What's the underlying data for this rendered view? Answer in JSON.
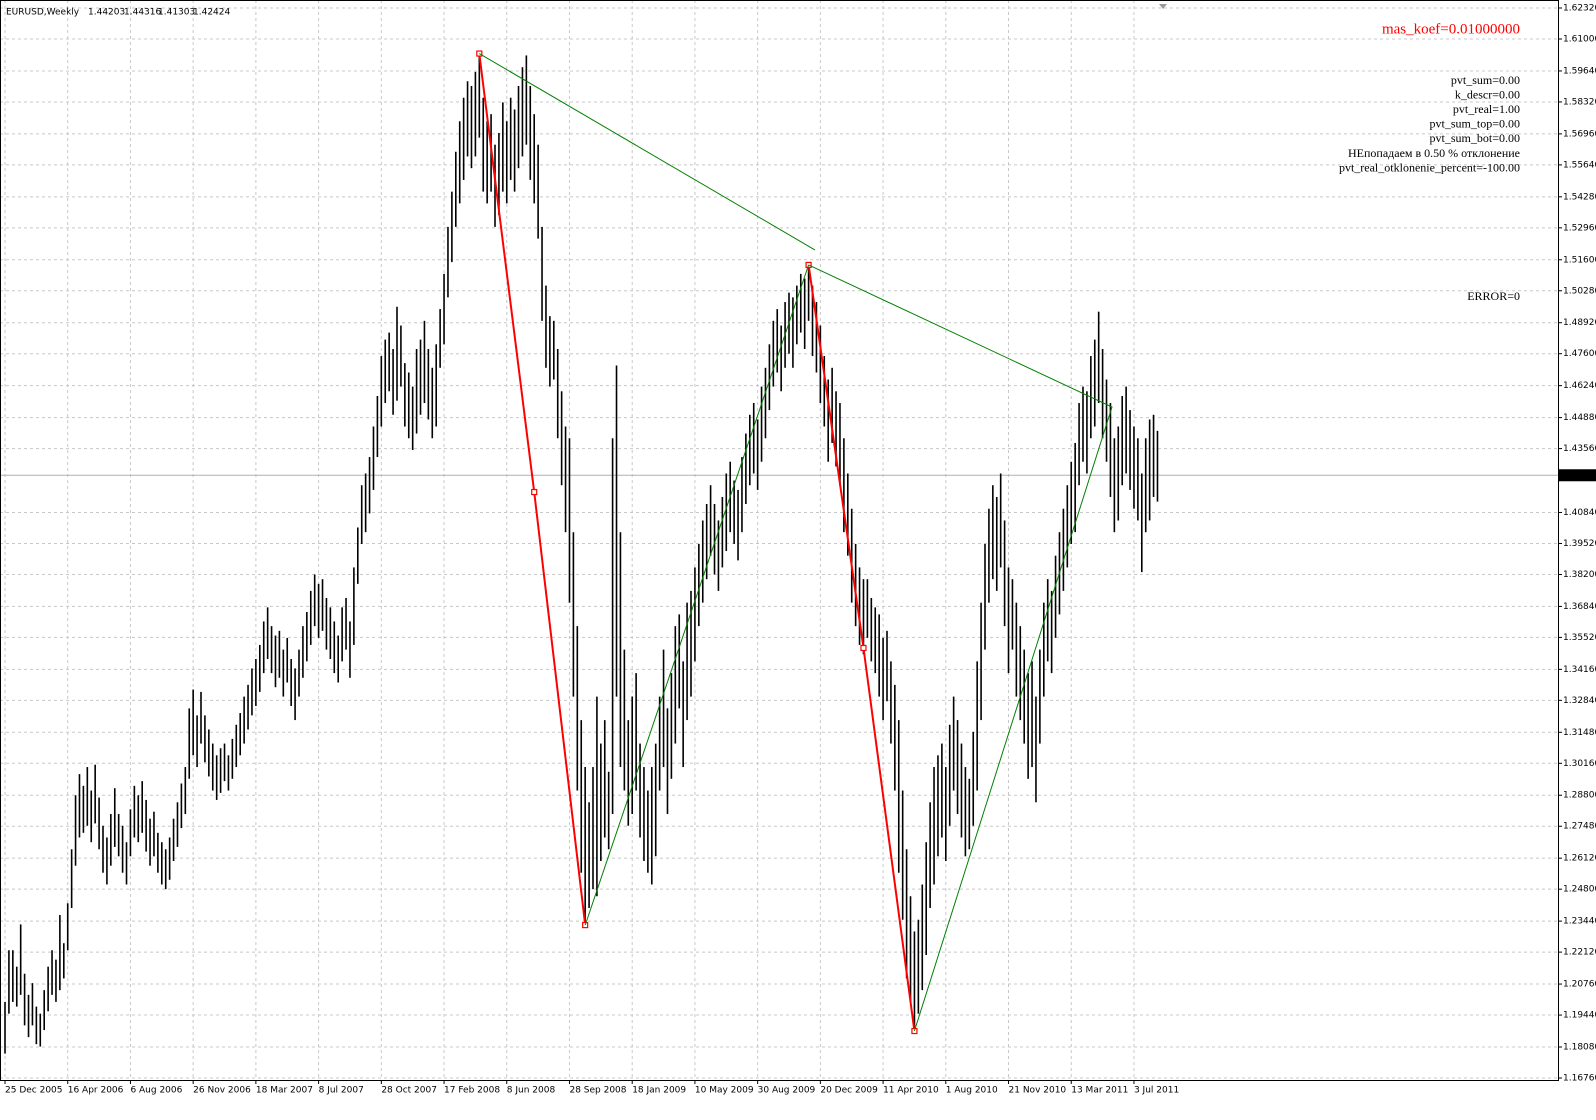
{
  "chart_data": {
    "type": "ohlc",
    "title": "EURUSD,Weekly",
    "last_bar": {
      "open": 1.44203,
      "high": 1.44316,
      "low": 1.41303,
      "close": 1.42424
    },
    "bar_color": "#000000",
    "grid": true,
    "ylim": [
      1.1676,
      1.6232
    ],
    "yticks": [
      {
        "value": 1.6232,
        "label": "1.62320"
      },
      {
        "value": 1.61,
        "label": "1.61000"
      },
      {
        "value": 1.5964,
        "label": "1.59640"
      },
      {
        "value": 1.5832,
        "label": "1.58320"
      },
      {
        "value": 1.5696,
        "label": "1.56960"
      },
      {
        "value": 1.5564,
        "label": "1.55640"
      },
      {
        "value": 1.5428,
        "label": "1.54280"
      },
      {
        "value": 1.5296,
        "label": "1.52960"
      },
      {
        "value": 1.516,
        "label": "1.51600"
      },
      {
        "value": 1.5028,
        "label": "1.50280"
      },
      {
        "value": 1.4892,
        "label": "1.48920"
      },
      {
        "value": 1.476,
        "label": "1.47600"
      },
      {
        "value": 1.4624,
        "label": "1.46240"
      },
      {
        "value": 1.4488,
        "label": "1.44880"
      },
      {
        "value": 1.4356,
        "label": "1.43560"
      },
      {
        "value": 1.4084,
        "label": "1.40840"
      },
      {
        "value": 1.3952,
        "label": "1.39520"
      },
      {
        "value": 1.382,
        "label": "1.38200"
      },
      {
        "value": 1.3684,
        "label": "1.36840"
      },
      {
        "value": 1.3552,
        "label": "1.35520"
      },
      {
        "value": 1.3416,
        "label": "1.34160"
      },
      {
        "value": 1.3284,
        "label": "1.32840"
      },
      {
        "value": 1.3148,
        "label": "1.31480"
      },
      {
        "value": 1.3016,
        "label": "1.30160"
      },
      {
        "value": 1.288,
        "label": "1.28800"
      },
      {
        "value": 1.2748,
        "label": "1.27480"
      },
      {
        "value": 1.2612,
        "label": "1.26120"
      },
      {
        "value": 1.248,
        "label": "1.24800"
      },
      {
        "value": 1.2344,
        "label": "1.23440"
      },
      {
        "value": 1.2212,
        "label": "1.22120"
      },
      {
        "value": 1.2076,
        "label": "1.20760"
      },
      {
        "value": 1.1944,
        "label": "1.19440"
      },
      {
        "value": 1.1808,
        "label": "1.18080"
      },
      {
        "value": 1.1676,
        "label": "1.16760"
      }
    ],
    "xlim": [
      -1,
      397
    ],
    "xticks": [
      {
        "value": 0,
        "label": "25 Dec 2005"
      },
      {
        "value": 16,
        "label": "16 Apr 2006"
      },
      {
        "value": 32,
        "label": "6 Aug 2006"
      },
      {
        "value": 48,
        "label": "26 Nov 2006"
      },
      {
        "value": 64,
        "label": "18 Mar 2007"
      },
      {
        "value": 80,
        "label": "8 Jul 2007"
      },
      {
        "value": 96,
        "label": "28 Oct 2007"
      },
      {
        "value": 112,
        "label": "17 Feb 2008"
      },
      {
        "value": 128,
        "label": "8 Jun 2008"
      },
      {
        "value": 144,
        "label": "28 Sep 2008"
      },
      {
        "value": 160,
        "label": "18 Jan 2009"
      },
      {
        "value": 176,
        "label": "10 May 2009"
      },
      {
        "value": 192,
        "label": "30 Aug 2009"
      },
      {
        "value": 208,
        "label": "20 Dec 2009"
      },
      {
        "value": 224,
        "label": "11 Apr 2010"
      },
      {
        "value": 240,
        "label": "1 Aug 2010"
      },
      {
        "value": 256,
        "label": "21 Nov 2010"
      },
      {
        "value": 272,
        "label": "13 Mar 2011"
      },
      {
        "value": 288,
        "label": "3 Jul 2011"
      }
    ],
    "high": [
      1.2,
      1.222,
      1.222,
      1.215,
      1.233,
      1.212,
      1.203,
      1.208,
      1.198,
      1.195,
      1.205,
      1.215,
      1.222,
      1.218,
      1.237,
      1.225,
      1.242,
      1.265,
      1.288,
      1.297,
      1.292,
      1.3,
      1.29,
      1.301,
      1.287,
      1.275,
      1.27,
      1.28,
      1.291,
      1.28,
      1.275,
      1.268,
      1.282,
      1.292,
      1.288,
      1.294,
      1.286,
      1.278,
      1.281,
      1.272,
      1.268,
      1.265,
      1.27,
      1.278,
      1.285,
      1.293,
      1.3,
      1.325,
      1.333,
      1.322,
      1.332,
      1.322,
      1.316,
      1.31,
      1.305,
      1.308,
      1.31,
      1.305,
      1.312,
      1.318,
      1.323,
      1.33,
      1.335,
      1.342,
      1.346,
      1.352,
      1.362,
      1.368,
      1.36,
      1.356,
      1.358,
      1.35,
      1.355,
      1.346,
      1.342,
      1.35,
      1.36,
      1.366,
      1.375,
      1.382,
      1.378,
      1.38,
      1.372,
      1.368,
      1.362,
      1.356,
      1.368,
      1.372,
      1.362,
      1.385,
      1.402,
      1.42,
      1.425,
      1.432,
      1.445,
      1.458,
      1.475,
      1.482,
      1.485,
      1.478,
      1.496,
      1.488,
      1.472,
      1.468,
      1.462,
      1.478,
      1.482,
      1.49,
      1.478,
      1.47,
      1.48,
      1.495,
      1.51,
      1.53,
      1.545,
      1.562,
      1.575,
      1.585,
      1.592,
      1.59,
      1.596,
      1.6038,
      1.585,
      1.575,
      1.578,
      1.565,
      1.57,
      1.583,
      1.575,
      1.585,
      1.58,
      1.59,
      1.598,
      1.603,
      1.59,
      1.578,
      1.565,
      1.53,
      1.505,
      1.492,
      1.49,
      1.478,
      1.46,
      1.445,
      1.44,
      1.4,
      1.36,
      1.32,
      1.3,
      1.285,
      1.3,
      1.33,
      1.31,
      1.32,
      1.298,
      1.44,
      1.471,
      1.4,
      1.35,
      1.32,
      1.33,
      1.34,
      1.31,
      1.3,
      1.29,
      1.3,
      1.31,
      1.33,
      1.35,
      1.325,
      1.34,
      1.36,
      1.365,
      1.345,
      1.37,
      1.375,
      1.385,
      1.395,
      1.405,
      1.412,
      1.42,
      1.412,
      1.405,
      1.415,
      1.425,
      1.43,
      1.422,
      1.418,
      1.432,
      1.442,
      1.45,
      1.455,
      1.448,
      1.462,
      1.47,
      1.48,
      1.49,
      1.495,
      1.488,
      1.498,
      1.502,
      1.5,
      1.505,
      1.51,
      1.508,
      1.514,
      1.505,
      1.498,
      1.488,
      1.475,
      1.465,
      1.47,
      1.46,
      1.455,
      1.44,
      1.425,
      1.41,
      1.395,
      1.385,
      1.38,
      1.38,
      1.372,
      1.368,
      1.365,
      1.355,
      1.358,
      1.345,
      1.335,
      1.32,
      1.29,
      1.265,
      1.245,
      1.23,
      1.235,
      1.25,
      1.268,
      1.285,
      1.3,
      1.305,
      1.31,
      1.3,
      1.318,
      1.33,
      1.32,
      1.31,
      1.3,
      1.295,
      1.315,
      1.345,
      1.37,
      1.395,
      1.41,
      1.42,
      1.415,
      1.425,
      1.405,
      1.385,
      1.38,
      1.37,
      1.36,
      1.35,
      1.34,
      1.345,
      1.33,
      1.35,
      1.37,
      1.38,
      1.375,
      1.39,
      1.4,
      1.41,
      1.42,
      1.43,
      1.438,
      1.455,
      1.462,
      1.46,
      1.475,
      1.482,
      1.4939,
      1.478,
      1.465,
      1.455,
      1.44,
      1.445,
      1.458,
      1.462,
      1.452,
      1.445,
      1.44,
      1.425,
      1.44,
      1.448,
      1.45,
      1.44316
    ],
    "low": [
      1.178,
      1.195,
      1.2,
      1.198,
      1.203,
      1.19,
      1.185,
      1.19,
      1.182,
      1.181,
      1.188,
      1.196,
      1.203,
      1.2,
      1.205,
      1.21,
      1.222,
      1.24,
      1.258,
      1.27,
      1.272,
      1.275,
      1.268,
      1.276,
      1.265,
      1.255,
      1.25,
      1.258,
      1.266,
      1.262,
      1.255,
      1.25,
      1.262,
      1.27,
      1.268,
      1.272,
      1.264,
      1.258,
      1.262,
      1.255,
      1.25,
      1.248,
      1.252,
      1.26,
      1.266,
      1.274,
      1.28,
      1.295,
      1.305,
      1.3,
      1.31,
      1.302,
      1.296,
      1.29,
      1.286,
      1.289,
      1.294,
      1.29,
      1.295,
      1.3,
      1.305,
      1.31,
      1.316,
      1.322,
      1.326,
      1.332,
      1.34,
      1.346,
      1.34,
      1.334,
      1.338,
      1.33,
      1.336,
      1.326,
      1.32,
      1.33,
      1.338,
      1.345,
      1.352,
      1.36,
      1.355,
      1.358,
      1.35,
      1.346,
      1.34,
      1.336,
      1.345,
      1.35,
      1.338,
      1.352,
      1.378,
      1.395,
      1.4,
      1.408,
      1.418,
      1.432,
      1.445,
      1.455,
      1.46,
      1.45,
      1.456,
      1.462,
      1.445,
      1.44,
      1.435,
      1.442,
      1.45,
      1.455,
      1.448,
      1.44,
      1.445,
      1.47,
      1.48,
      1.5,
      1.515,
      1.53,
      1.54,
      1.55,
      1.56,
      1.555,
      1.56,
      1.568,
      1.545,
      1.54,
      1.545,
      1.53,
      1.535,
      1.545,
      1.54,
      1.55,
      1.545,
      1.555,
      1.56,
      1.565,
      1.55,
      1.54,
      1.525,
      1.49,
      1.47,
      1.462,
      1.465,
      1.44,
      1.42,
      1.4,
      1.37,
      1.33,
      1.29,
      1.255,
      1.234,
      1.24,
      1.248,
      1.245,
      1.26,
      1.27,
      1.265,
      1.28,
      1.33,
      1.3,
      1.29,
      1.275,
      1.28,
      1.29,
      1.27,
      1.26,
      1.255,
      1.25,
      1.262,
      1.29,
      1.3,
      1.28,
      1.295,
      1.31,
      1.325,
      1.3,
      1.32,
      1.33,
      1.345,
      1.36,
      1.37,
      1.38,
      1.39,
      1.382,
      1.375,
      1.385,
      1.392,
      1.4,
      1.395,
      1.388,
      1.4,
      1.412,
      1.42,
      1.425,
      1.418,
      1.43,
      1.44,
      1.452,
      1.462,
      1.468,
      1.46,
      1.47,
      1.476,
      1.47,
      1.48,
      1.485,
      1.478,
      1.49,
      1.475,
      1.468,
      1.455,
      1.445,
      1.43,
      1.438,
      1.428,
      1.42,
      1.4,
      1.39,
      1.37,
      1.36,
      1.352,
      1.348,
      1.355,
      1.345,
      1.34,
      1.33,
      1.32,
      1.328,
      1.31,
      1.29,
      1.255,
      1.235,
      1.21,
      1.2,
      1.1877,
      1.195,
      1.205,
      1.22,
      1.24,
      1.25,
      1.262,
      1.27,
      1.26,
      1.275,
      1.29,
      1.28,
      1.27,
      1.262,
      1.265,
      1.275,
      1.29,
      1.32,
      1.35,
      1.37,
      1.38,
      1.375,
      1.385,
      1.36,
      1.34,
      1.35,
      1.33,
      1.32,
      1.31,
      1.295,
      1.3,
      1.285,
      1.31,
      1.33,
      1.345,
      1.34,
      1.355,
      1.365,
      1.375,
      1.385,
      1.395,
      1.4,
      1.42,
      1.43,
      1.425,
      1.44,
      1.445,
      1.455,
      1.44,
      1.43,
      1.415,
      1.4,
      1.405,
      1.42,
      1.425,
      1.418,
      1.41,
      1.405,
      1.383,
      1.4,
      1.405,
      1.415,
      1.41303
    ],
    "zigzag": [
      {
        "color": "#ff0000",
        "width": 2,
        "markers": true,
        "x": [
          121,
          135,
          148
        ],
        "values": [
          1.6038,
          1.4171,
          1.2327
        ]
      },
      {
        "color": "#ff0000",
        "width": 2,
        "markers": true,
        "x": [
          205,
          219,
          232
        ],
        "values": [
          1.5138,
          1.3507,
          1.1876
        ]
      },
      {
        "color": "#008000",
        "width": 1,
        "markers": false,
        "x": [
          121,
          206.6
        ],
        "values": [
          1.6038,
          1.5202
        ]
      },
      {
        "color": "#008000",
        "width": 1,
        "markers": false,
        "x": [
          148,
          205
        ],
        "values": [
          1.2327,
          1.5138
        ]
      },
      {
        "color": "#008000",
        "width": 1,
        "markers": false,
        "x": [
          205,
          282.4,
          232
        ],
        "values": [
          1.5138,
          1.4533,
          1.1876
        ]
      }
    ],
    "annotations": {
      "mas_koef": "mas_koef=0.01000000",
      "lines": [
        "pvt_sum=0.00",
        "k_descr=0.00",
        "pvt_real=1.00",
        "pvt_sum_top=0.00",
        "pvt_sum_bot=0.00",
        "НЕпопадаем в 0.50 % отклонение",
        "pvt_real_otklonenie_percent=-100.00"
      ],
      "error": "ERROR=0"
    }
  }
}
